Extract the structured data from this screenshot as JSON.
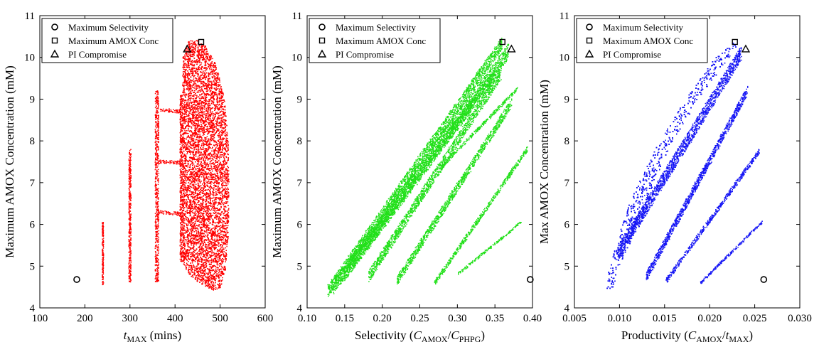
{
  "chart_data": [
    {
      "type": "scatter",
      "xlabel": "t_MAX (mins)",
      "xlabel_parts": [
        {
          "text": "t",
          "style": "italic"
        },
        {
          "text": "MAX",
          "style": "sub"
        },
        {
          "text": " (mins)",
          "style": "normal"
        }
      ],
      "ylabel": "Maximum AMOX Concentration (mM)",
      "xlim": [
        100,
        600
      ],
      "ylim": [
        4,
        11
      ],
      "xticks": [
        100,
        200,
        300,
        400,
        500,
        600
      ],
      "xtick_labels": [
        "100",
        "200",
        "300",
        "400",
        "500",
        "600"
      ],
      "yticks": [
        4,
        5,
        6,
        7,
        8,
        9,
        10,
        11
      ],
      "ytick_labels": [
        "4",
        "5",
        "6",
        "7",
        "8",
        "9",
        "10",
        "11"
      ],
      "scatter_color": "#ff0000",
      "legend_position": "top-left",
      "legend": [
        {
          "label": "Maximum Selectivity",
          "marker": "circle"
        },
        {
          "label": "Maximum AMOX Conc",
          "marker": "square"
        },
        {
          "label": "PI Compromise",
          "marker": "triangle"
        }
      ],
      "highlight_points": [
        {
          "marker": "circle",
          "x": 182,
          "y": 4.68
        },
        {
          "marker": "square",
          "x": 458,
          "y": 10.37
        },
        {
          "marker": "triangle",
          "x": 427,
          "y": 10.2
        }
      ],
      "clusters": [
        {
          "kind": "column",
          "x": 240,
          "ymin": 4.55,
          "ymax": 6.05,
          "width": 3
        },
        {
          "kind": "column",
          "x": 300,
          "ymin": 4.62,
          "ymax": 7.8,
          "width": 5
        },
        {
          "kind": "column",
          "x": 360,
          "ymin": 4.62,
          "ymax": 9.2,
          "width": 8
        },
        {
          "kind": "band",
          "x0": 362,
          "x1": 412,
          "y0": 7.5,
          "y1": 7.48,
          "width": 0.08
        },
        {
          "kind": "band",
          "x0": 362,
          "x1": 412,
          "y0": 8.75,
          "y1": 8.7,
          "width": 0.08
        },
        {
          "kind": "band",
          "x0": 362,
          "x1": 412,
          "y0": 6.3,
          "y1": 6.25,
          "width": 0.08
        },
        {
          "kind": "column",
          "x": 414,
          "ymin": 5.1,
          "ymax": 9.1,
          "width": 6
        },
        {
          "kind": "blob",
          "points": [
            [
              417,
              5.1
            ],
            [
              417,
              10.0
            ],
            [
              430,
              10.4
            ],
            [
              452,
              10.4
            ],
            [
              470,
              10.25
            ],
            [
              492,
              9.8
            ],
            [
              510,
              9.0
            ],
            [
              518,
              8.0
            ],
            [
              520,
              6.8
            ],
            [
              518,
              5.7
            ],
            [
              512,
              4.9
            ],
            [
              500,
              4.45
            ],
            [
              485,
              4.4
            ],
            [
              470,
              4.5
            ],
            [
              455,
              4.6
            ],
            [
              440,
              4.7
            ],
            [
              425,
              4.9
            ]
          ]
        }
      ]
    },
    {
      "type": "scatter",
      "xlabel": "Selectivity (C_AMOX/C_PHPG)",
      "xlabel_parts": [
        {
          "text": "Selectivity (",
          "style": "normal"
        },
        {
          "text": "C",
          "style": "italic"
        },
        {
          "text": "AMOX",
          "style": "sub"
        },
        {
          "text": "/",
          "style": "normal"
        },
        {
          "text": "C",
          "style": "italic"
        },
        {
          "text": "PHPG",
          "style": "sub"
        },
        {
          "text": ")",
          "style": "normal"
        }
      ],
      "ylabel": "Maximum AMOX Concentration (mM)",
      "xlim": [
        0.1,
        0.4
      ],
      "ylim": [
        4,
        11
      ],
      "xticks": [
        0.1,
        0.15,
        0.2,
        0.25,
        0.3,
        0.35,
        0.4
      ],
      "xtick_labels": [
        "0.10",
        "0.15",
        "0.20",
        "0.25",
        "0.30",
        "0.35",
        "0.40"
      ],
      "yticks": [
        4,
        5,
        6,
        7,
        8,
        9,
        10,
        11
      ],
      "ytick_labels": [
        "4",
        "5",
        "6",
        "7",
        "8",
        "9",
        "10",
        "11"
      ],
      "scatter_color": "#22e01a",
      "legend_position": "top-left",
      "legend": [
        {
          "label": "Maximum Selectivity",
          "marker": "circle"
        },
        {
          "label": "Maximum AMOX Conc",
          "marker": "square"
        },
        {
          "label": "PI Compromise",
          "marker": "triangle"
        }
      ],
      "highlight_points": [
        {
          "marker": "circle",
          "x": 0.397,
          "y": 4.68
        },
        {
          "marker": "square",
          "x": 0.36,
          "y": 10.37
        },
        {
          "marker": "triangle",
          "x": 0.372,
          "y": 10.2
        }
      ],
      "clusters": [
        {
          "kind": "band",
          "x0": 0.128,
          "x1": 0.36,
          "y0": 4.4,
          "y1": 10.35,
          "width": 0.3
        },
        {
          "kind": "band",
          "x0": 0.135,
          "x1": 0.368,
          "y0": 4.5,
          "y1": 10.15,
          "width": 0.35
        },
        {
          "kind": "band",
          "x0": 0.15,
          "x1": 0.35,
          "y0": 4.8,
          "y1": 9.6,
          "width": 0.3
        },
        {
          "kind": "band",
          "x0": 0.182,
          "x1": 0.358,
          "y0": 4.75,
          "y1": 9.6,
          "width": 0.28
        },
        {
          "kind": "band",
          "x0": 0.22,
          "x1": 0.372,
          "y0": 4.65,
          "y1": 8.9,
          "width": 0.22
        },
        {
          "kind": "band",
          "x0": 0.28,
          "x1": 0.38,
          "y0": 7.4,
          "y1": 9.25,
          "width": 0.08
        },
        {
          "kind": "band",
          "x0": 0.27,
          "x1": 0.393,
          "y0": 4.6,
          "y1": 7.8,
          "width": 0.12
        },
        {
          "kind": "band",
          "x0": 0.3,
          "x1": 0.385,
          "y0": 4.8,
          "y1": 6.05,
          "width": 0.06
        }
      ]
    },
    {
      "type": "scatter",
      "xlabel": "Productivity (C_AMOX/t_MAX)",
      "xlabel_parts": [
        {
          "text": "Productivity (",
          "style": "normal"
        },
        {
          "text": "C",
          "style": "italic"
        },
        {
          "text": "AMOX",
          "style": "sub"
        },
        {
          "text": "/",
          "style": "normal"
        },
        {
          "text": "t",
          "style": "italic"
        },
        {
          "text": "MAX",
          "style": "sub"
        },
        {
          "text": ")",
          "style": "normal"
        }
      ],
      "ylabel": "Max AMOX Concentration (mM)",
      "xlim": [
        0.005,
        0.03
      ],
      "ylim": [
        4,
        11
      ],
      "xticks": [
        0.005,
        0.01,
        0.015,
        0.02,
        0.025,
        0.03
      ],
      "xtick_labels": [
        "0.005",
        "0.010",
        "0.015",
        "0.020",
        "0.025",
        "0.030"
      ],
      "yticks": [
        4,
        5,
        6,
        7,
        8,
        9,
        10,
        11
      ],
      "ytick_labels": [
        "4",
        "5",
        "6",
        "7",
        "8",
        "9",
        "10",
        "11"
      ],
      "scatter_color": "#1414f5",
      "legend_position": "top-left",
      "legend": [
        {
          "label": "Maximum Selectivity",
          "marker": "circle"
        },
        {
          "label": "Maximum AMOX Conc",
          "marker": "square"
        },
        {
          "label": "PI Compromise",
          "marker": "triangle"
        }
      ],
      "highlight_points": [
        {
          "marker": "circle",
          "x": 0.026,
          "y": 4.68
        },
        {
          "marker": "square",
          "x": 0.0228,
          "y": 10.37
        },
        {
          "marker": "triangle",
          "x": 0.024,
          "y": 10.2
        }
      ],
      "clusters": [
        {
          "kind": "blob",
          "points": [
            [
              0.0085,
              4.4
            ],
            [
              0.0092,
              4.45
            ],
            [
              0.0118,
              5.9
            ],
            [
              0.015,
              7.6
            ],
            [
              0.0185,
              8.9
            ],
            [
              0.0215,
              9.8
            ],
            [
              0.0232,
              10.3
            ],
            [
              0.0228,
              10.4
            ],
            [
              0.0205,
              9.95
            ],
            [
              0.0172,
              8.95
            ],
            [
              0.0142,
              7.9
            ],
            [
              0.0113,
              6.6
            ],
            [
              0.0095,
              5.5
            ],
            [
              0.0088,
              4.9
            ]
          ]
        },
        {
          "kind": "band",
          "x0": 0.0098,
          "x1": 0.0235,
          "y0": 5.3,
          "y1": 10.1,
          "width": 0.35
        },
        {
          "kind": "band",
          "x0": 0.013,
          "x1": 0.0242,
          "y0": 4.75,
          "y1": 9.2,
          "width": 0.22
        },
        {
          "kind": "band",
          "x0": 0.0152,
          "x1": 0.0255,
          "y0": 4.65,
          "y1": 7.75,
          "width": 0.12
        },
        {
          "kind": "band",
          "x0": 0.019,
          "x1": 0.0258,
          "y0": 4.6,
          "y1": 6.05,
          "width": 0.06
        }
      ]
    }
  ]
}
